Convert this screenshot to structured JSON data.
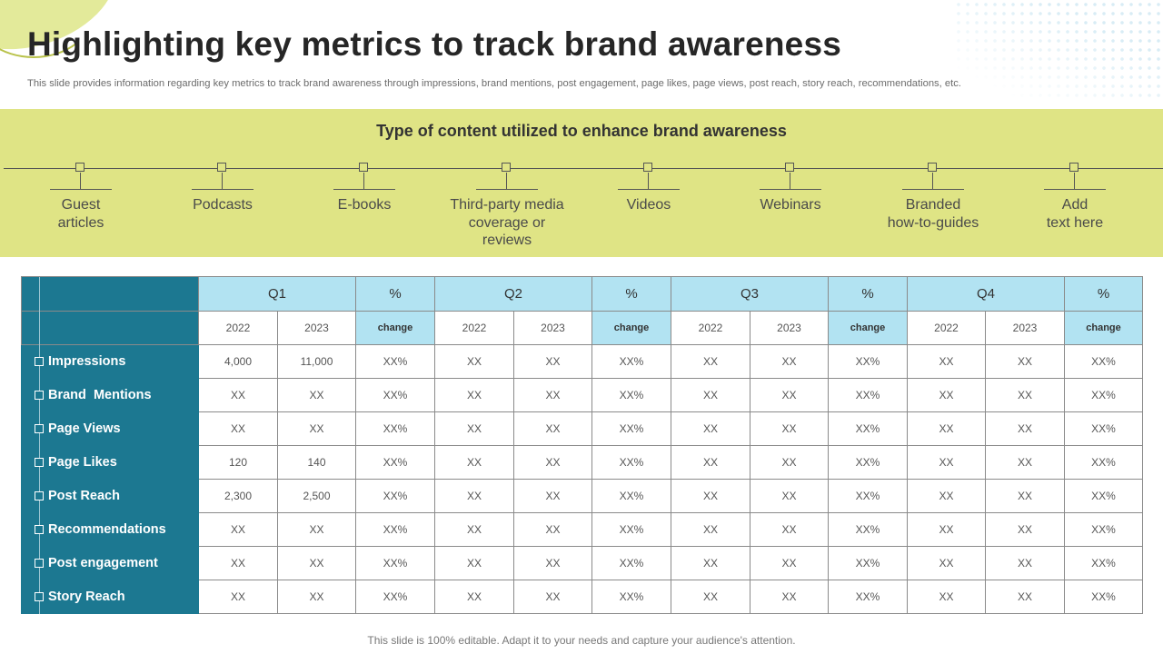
{
  "title": "Highlighting key metrics to track brand awareness",
  "subtitle": "This slide provides information regarding key metrics to track brand awareness through impressions, brand mentions, post engagement, page likes, page views, post reach, story reach, recommendations, etc.",
  "content_band": {
    "heading": "Type of content utilized to enhance brand awareness",
    "items": [
      "Guest\narticles",
      "Podcasts",
      "E-books",
      "Third-party media\ncoverage or\nreviews",
      "Videos",
      "Webinars",
      "Branded\nhow-to-guides",
      "Add\ntext here"
    ]
  },
  "table": {
    "quarters": [
      {
        "label": "Q1",
        "pct": "%"
      },
      {
        "label": "Q2",
        "pct": "%"
      },
      {
        "label": "Q3",
        "pct": "%"
      },
      {
        "label": "Q4",
        "pct": "%"
      }
    ],
    "year_a": "2022",
    "year_b": "2023",
    "change_label": "change",
    "rows": [
      {
        "metric": "Impressions",
        "cells": [
          "4,000",
          "11,000",
          "XX%",
          "XX",
          "XX",
          "XX%",
          "XX",
          "XX",
          "XX%",
          "XX",
          "XX",
          "XX%"
        ]
      },
      {
        "metric": "Brand  Mentions",
        "cells": [
          "XX",
          "XX",
          "XX%",
          "XX",
          "XX",
          "XX%",
          "XX",
          "XX",
          "XX%",
          "XX",
          "XX",
          "XX%"
        ]
      },
      {
        "metric": "Page Views",
        "cells": [
          "XX",
          "XX",
          "XX%",
          "XX",
          "XX",
          "XX%",
          "XX",
          "XX",
          "XX%",
          "XX",
          "XX",
          "XX%"
        ]
      },
      {
        "metric": "Page Likes",
        "cells": [
          "120",
          "140",
          "XX%",
          "XX",
          "XX",
          "XX%",
          "XX",
          "XX",
          "XX%",
          "XX",
          "XX",
          "XX%"
        ]
      },
      {
        "metric": "Post Reach",
        "cells": [
          "2,300",
          "2,500",
          "XX%",
          "XX",
          "XX",
          "XX%",
          "XX",
          "XX",
          "XX%",
          "XX",
          "XX",
          "XX%"
        ]
      },
      {
        "metric": "Recommendations",
        "cells": [
          "XX",
          "XX",
          "XX%",
          "XX",
          "XX",
          "XX%",
          "XX",
          "XX",
          "XX%",
          "XX",
          "XX",
          "XX%"
        ]
      },
      {
        "metric": "Post engagement",
        "cells": [
          "XX",
          "XX",
          "XX%",
          "XX",
          "XX",
          "XX%",
          "XX",
          "XX",
          "XX%",
          "XX",
          "XX",
          "XX%"
        ]
      },
      {
        "metric": "Story Reach",
        "cells": [
          "XX",
          "XX",
          "XX%",
          "XX",
          "XX",
          "XX%",
          "XX",
          "XX",
          "XX%",
          "XX",
          "XX",
          "XX%"
        ]
      }
    ]
  },
  "footer": "This slide is 100% editable. Adapt it to your needs and capture your audience's attention."
}
